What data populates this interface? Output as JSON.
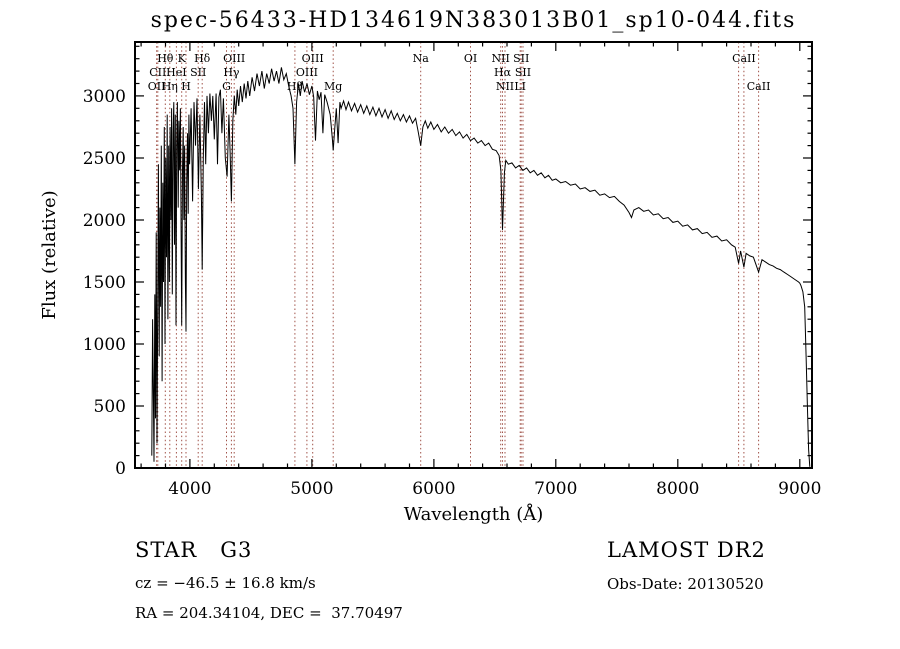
{
  "title": "spec-56433-HD134619N383013B01_sp10-044.fits",
  "footer": {
    "class_label": "STAR   G3",
    "survey": "LAMOST DR2",
    "cz": "cz = −46.5 ± 16.8 km/s",
    "obs_date": "Obs-Date: 20130520",
    "radec": "RA = 204.34104, DEC =  37.70497"
  },
  "chart_data": {
    "type": "line",
    "title": "spec-56433-HD134619N383013B01_sp10-044.fits",
    "xlabel": "Wavelength (Å)",
    "ylabel": "Flux (relative)",
    "xlim": [
      3550,
      9100
    ],
    "ylim": [
      0,
      3435
    ],
    "x_major_ticks": [
      4000,
      5000,
      6000,
      7000,
      8000,
      9000
    ],
    "x_minor_step": 200,
    "y_major_ticks": [
      0,
      500,
      1000,
      1500,
      2000,
      2500,
      3000
    ],
    "y_minor_step": 100,
    "grid": false,
    "legend": "none",
    "line_color": "#000000",
    "marker_line_color": "#a05248",
    "spectral_lines": [
      {
        "wavelength": 3727,
        "label": "OII",
        "row": 3
      },
      {
        "wavelength": 3737,
        "label": "CII",
        "row": 2
      },
      {
        "wavelength": 3798,
        "label": "Hθ",
        "row": 1
      },
      {
        "wavelength": 3835,
        "label": "Hη",
        "row": 3
      },
      {
        "wavelength": 3889,
        "label": "HeI",
        "row": 2
      },
      {
        "wavelength": 3933,
        "label": "K",
        "row": 1
      },
      {
        "wavelength": 3968,
        "label": "H",
        "row": 3
      },
      {
        "wavelength": 4068,
        "label": "SII",
        "row": 2
      },
      {
        "wavelength": 4101,
        "label": "Hδ",
        "row": 1
      },
      {
        "wavelength": 4300,
        "label": "G",
        "row": 3
      },
      {
        "wavelength": 4340,
        "label": "Hγ",
        "row": 2
      },
      {
        "wavelength": 4363,
        "label": "OIII",
        "row": 1
      },
      {
        "wavelength": 4861,
        "label": "Hβ",
        "row": 3
      },
      {
        "wavelength": 4959,
        "label": "OIII",
        "row": 2
      },
      {
        "wavelength": 5007,
        "label": "OIII",
        "row": 1
      },
      {
        "wavelength": 5175,
        "label": "Mg",
        "row": 3
      },
      {
        "wavelength": 5892,
        "label": "Na",
        "row": 1
      },
      {
        "wavelength": 6300,
        "label": "OI",
        "row": 1
      },
      {
        "wavelength": 6548,
        "label": "NII",
        "row": 1
      },
      {
        "wavelength": 6563,
        "label": "Hα",
        "row": 2
      },
      {
        "wavelength": 6583,
        "label": "NII",
        "row": 3
      },
      {
        "wavelength": 6708,
        "label": "LI",
        "row": 3
      },
      {
        "wavelength": 6716,
        "label": "SII",
        "row": 1
      },
      {
        "wavelength": 6731,
        "label": "SII",
        "row": 2
      },
      {
        "wavelength": 8498,
        "label": "",
        "row": 1
      },
      {
        "wavelength": 8542,
        "label": "CaII",
        "row": 1
      },
      {
        "wavelength": 8662,
        "label": "CaII",
        "row": 3
      }
    ],
    "series": [
      {
        "name": "flux",
        "points": [
          [
            3688,
            100
          ],
          [
            3694,
            1200
          ],
          [
            3700,
            650
          ],
          [
            3706,
            50
          ],
          [
            3712,
            1400
          ],
          [
            3718,
            400
          ],
          [
            3724,
            1900
          ],
          [
            3730,
            200
          ],
          [
            3736,
            1250
          ],
          [
            3742,
            2450
          ],
          [
            3748,
            900
          ],
          [
            3754,
            2100
          ],
          [
            3760,
            1300
          ],
          [
            3766,
            2600
          ],
          [
            3772,
            700
          ],
          [
            3778,
            2300
          ],
          [
            3784,
            1500
          ],
          [
            3790,
            2750
          ],
          [
            3796,
            1000
          ],
          [
            3802,
            2500
          ],
          [
            3808,
            1700
          ],
          [
            3814,
            2850
          ],
          [
            3820,
            1200
          ],
          [
            3826,
            2600
          ],
          [
            3832,
            1500
          ],
          [
            3838,
            2750
          ],
          [
            3844,
            2000
          ],
          [
            3850,
            2900
          ],
          [
            3856,
            1400
          ],
          [
            3862,
            2700
          ],
          [
            3868,
            2950
          ],
          [
            3874,
            1800
          ],
          [
            3880,
            2850
          ],
          [
            3886,
            1150
          ],
          [
            3892,
            2600
          ],
          [
            3898,
            2950
          ],
          [
            3904,
            2100
          ],
          [
            3910,
            2800
          ],
          [
            3916,
            2400
          ],
          [
            3922,
            2900
          ],
          [
            3928,
            1900
          ],
          [
            3933,
            1150
          ],
          [
            3939,
            2400
          ],
          [
            3945,
            2750
          ],
          [
            3951,
            2000
          ],
          [
            3957,
            2600
          ],
          [
            3963,
            1500
          ],
          [
            3968,
            1100
          ],
          [
            3974,
            2300
          ],
          [
            3980,
            2700
          ],
          [
            3986,
            2050
          ],
          [
            3992,
            2850
          ],
          [
            3998,
            2450
          ],
          [
            4010,
            2900
          ],
          [
            4022,
            2150
          ],
          [
            4034,
            2950
          ],
          [
            4046,
            2600
          ],
          [
            4058,
            2980
          ],
          [
            4070,
            2250
          ],
          [
            4082,
            2850
          ],
          [
            4094,
            2200
          ],
          [
            4101,
            1600
          ],
          [
            4110,
            2500
          ],
          [
            4120,
            2950
          ],
          [
            4130,
            2450
          ],
          [
            4140,
            3000
          ],
          [
            4152,
            2700
          ],
          [
            4164,
            3020
          ],
          [
            4176,
            2800
          ],
          [
            4188,
            3000
          ],
          [
            4200,
            2650
          ],
          [
            4215,
            3020
          ],
          [
            4226,
            2450
          ],
          [
            4238,
            2990
          ],
          [
            4250,
            3050
          ],
          [
            4262,
            2700
          ],
          [
            4275,
            2980
          ],
          [
            4290,
            2500
          ],
          [
            4305,
            2350
          ],
          [
            4320,
            2850
          ],
          [
            4330,
            2550
          ],
          [
            4340,
            2150
          ],
          [
            4352,
            2800
          ],
          [
            4364,
            3000
          ],
          [
            4376,
            2850
          ],
          [
            4388,
            3050
          ],
          [
            4400,
            2920
          ],
          [
            4415,
            3080
          ],
          [
            4430,
            2950
          ],
          [
            4445,
            3100
          ],
          [
            4460,
            2980
          ],
          [
            4475,
            3120
          ],
          [
            4490,
            3000
          ],
          [
            4510,
            3150
          ],
          [
            4530,
            3040
          ],
          [
            4550,
            3180
          ],
          [
            4570,
            3080
          ],
          [
            4590,
            3200
          ],
          [
            4610,
            3060
          ],
          [
            4630,
            3180
          ],
          [
            4650,
            3100
          ],
          [
            4670,
            3220
          ],
          [
            4690,
            3120
          ],
          [
            4710,
            3200
          ],
          [
            4730,
            3100
          ],
          [
            4750,
            3230
          ],
          [
            4770,
            3130
          ],
          [
            4790,
            3180
          ],
          [
            4810,
            3080
          ],
          [
            4830,
            3000
          ],
          [
            4845,
            2900
          ],
          [
            4861,
            2450
          ],
          [
            4875,
            2950
          ],
          [
            4890,
            3100
          ],
          [
            4905,
            3000
          ],
          [
            4920,
            3120
          ],
          [
            4940,
            3030
          ],
          [
            4960,
            3100
          ],
          [
            4980,
            3010
          ],
          [
            5000,
            3080
          ],
          [
            5015,
            2990
          ],
          [
            5030,
            2640
          ],
          [
            5045,
            3040
          ],
          [
            5060,
            2970
          ],
          [
            5075,
            3030
          ],
          [
            5090,
            2700
          ],
          [
            5105,
            3010
          ],
          [
            5125,
            2950
          ],
          [
            5150,
            2850
          ],
          [
            5168,
            2650
          ],
          [
            5175,
            2560
          ],
          [
            5185,
            2700
          ],
          [
            5200,
            2900
          ],
          [
            5215,
            2620
          ],
          [
            5230,
            2950
          ],
          [
            5240,
            2900
          ],
          [
            5260,
            2960
          ],
          [
            5280,
            2890
          ],
          [
            5300,
            2950
          ],
          [
            5325,
            2880
          ],
          [
            5350,
            2940
          ],
          [
            5375,
            2870
          ],
          [
            5400,
            2930
          ],
          [
            5425,
            2860
          ],
          [
            5450,
            2920
          ],
          [
            5475,
            2850
          ],
          [
            5500,
            2910
          ],
          [
            5525,
            2840
          ],
          [
            5550,
            2900
          ],
          [
            5575,
            2830
          ],
          [
            5600,
            2890
          ],
          [
            5625,
            2820
          ],
          [
            5650,
            2880
          ],
          [
            5675,
            2810
          ],
          [
            5700,
            2860
          ],
          [
            5725,
            2800
          ],
          [
            5750,
            2850
          ],
          [
            5775,
            2790
          ],
          [
            5800,
            2840
          ],
          [
            5825,
            2780
          ],
          [
            5850,
            2820
          ],
          [
            5870,
            2720
          ],
          [
            5892,
            2600
          ],
          [
            5910,
            2750
          ],
          [
            5930,
            2800
          ],
          [
            5950,
            2740
          ],
          [
            5975,
            2790
          ],
          [
            6000,
            2730
          ],
          [
            6030,
            2770
          ],
          [
            6060,
            2710
          ],
          [
            6090,
            2750
          ],
          [
            6120,
            2700
          ],
          [
            6150,
            2730
          ],
          [
            6180,
            2680
          ],
          [
            6210,
            2710
          ],
          [
            6240,
            2660
          ],
          [
            6270,
            2690
          ],
          [
            6300,
            2640
          ],
          [
            6330,
            2660
          ],
          [
            6360,
            2620
          ],
          [
            6390,
            2640
          ],
          [
            6420,
            2600
          ],
          [
            6450,
            2620
          ],
          [
            6480,
            2570
          ],
          [
            6510,
            2560
          ],
          [
            6535,
            2520
          ],
          [
            6550,
            2400
          ],
          [
            6563,
            1920
          ],
          [
            6578,
            2380
          ],
          [
            6590,
            2480
          ],
          [
            6610,
            2450
          ],
          [
            6640,
            2460
          ],
          [
            6670,
            2420
          ],
          [
            6700,
            2440
          ],
          [
            6730,
            2400
          ],
          [
            6760,
            2420
          ],
          [
            6790,
            2380
          ],
          [
            6820,
            2400
          ],
          [
            6850,
            2360
          ],
          [
            6880,
            2380
          ],
          [
            6910,
            2340
          ],
          [
            6940,
            2360
          ],
          [
            6970,
            2320
          ],
          [
            7000,
            2330
          ],
          [
            7040,
            2300
          ],
          [
            7080,
            2310
          ],
          [
            7120,
            2280
          ],
          [
            7160,
            2290
          ],
          [
            7200,
            2250
          ],
          [
            7240,
            2260
          ],
          [
            7280,
            2230
          ],
          [
            7320,
            2240
          ],
          [
            7360,
            2200
          ],
          [
            7400,
            2210
          ],
          [
            7440,
            2180
          ],
          [
            7480,
            2190
          ],
          [
            7520,
            2150
          ],
          [
            7560,
            2120
          ],
          [
            7600,
            2060
          ],
          [
            7620,
            2020
          ],
          [
            7640,
            2080
          ],
          [
            7680,
            2100
          ],
          [
            7720,
            2070
          ],
          [
            7760,
            2080
          ],
          [
            7800,
            2040
          ],
          [
            7840,
            2050
          ],
          [
            7880,
            2010
          ],
          [
            7920,
            2020
          ],
          [
            7960,
            1980
          ],
          [
            8000,
            1990
          ],
          [
            8040,
            1950
          ],
          [
            8080,
            1960
          ],
          [
            8120,
            1920
          ],
          [
            8160,
            1930
          ],
          [
            8200,
            1890
          ],
          [
            8240,
            1900
          ],
          [
            8280,
            1860
          ],
          [
            8320,
            1870
          ],
          [
            8360,
            1830
          ],
          [
            8400,
            1840
          ],
          [
            8440,
            1800
          ],
          [
            8470,
            1780
          ],
          [
            8498,
            1650
          ],
          [
            8515,
            1750
          ],
          [
            8542,
            1620
          ],
          [
            8560,
            1730
          ],
          [
            8590,
            1710
          ],
          [
            8620,
            1700
          ],
          [
            8662,
            1580
          ],
          [
            8690,
            1680
          ],
          [
            8720,
            1660
          ],
          [
            8750,
            1640
          ],
          [
            8780,
            1630
          ],
          [
            8810,
            1610
          ],
          [
            8840,
            1600
          ],
          [
            8870,
            1580
          ],
          [
            8900,
            1560
          ],
          [
            8930,
            1540
          ],
          [
            8960,
            1520
          ],
          [
            8990,
            1500
          ],
          [
            9000,
            1490
          ],
          [
            9010,
            1470
          ],
          [
            9025,
            1420
          ],
          [
            9040,
            1300
          ],
          [
            9052,
            900
          ],
          [
            9062,
            500
          ],
          [
            9072,
            150
          ],
          [
            9082,
            10
          ]
        ]
      }
    ]
  }
}
